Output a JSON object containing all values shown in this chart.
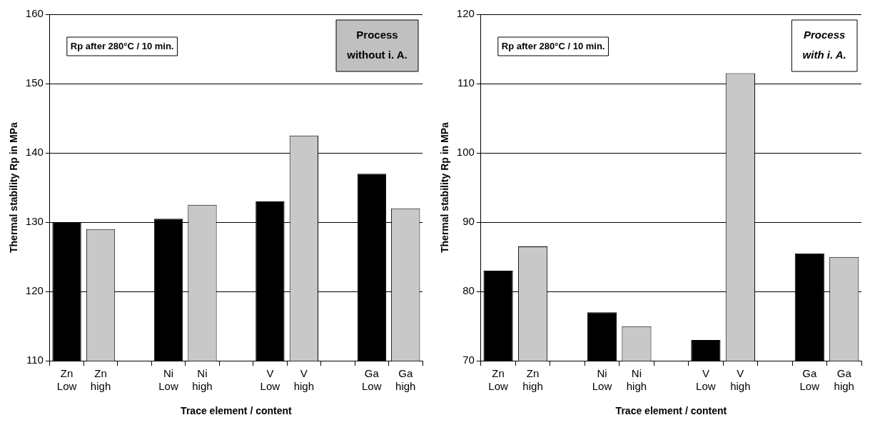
{
  "chart_data": [
    {
      "type": "bar",
      "xlabel": "Trace element / content",
      "ylabel": "Thermal stability Rp in MPa",
      "categories": [
        "Zn Low",
        "Zn high",
        null,
        "Ni Low",
        "Ni high",
        null,
        "V Low",
        "V high",
        null,
        "Ga Low",
        "Ga high"
      ],
      "values": [
        130,
        129,
        null,
        130.5,
        132.5,
        null,
        133,
        142.5,
        null,
        137,
        132
      ],
      "colors": [
        "#000000",
        "#c8c8c8",
        null,
        "#000000",
        "#c8c8c8",
        null,
        "#000000",
        "#c8c8c8",
        null,
        "#000000",
        "#c8c8c8"
      ],
      "ylim": [
        110,
        160
      ],
      "yticks": [
        110,
        120,
        130,
        140,
        150,
        160
      ],
      "grid": "y",
      "legend": false,
      "annotations": [
        "Rp after 280°C / 10 min.",
        "Process without i. A."
      ]
    },
    {
      "type": "bar",
      "xlabel": "Trace element / content",
      "ylabel": "Thermal stability Rp in MPa",
      "categories": [
        "Zn Low",
        "Zn high",
        null,
        "Ni Low",
        "Ni high",
        null,
        "V Low",
        "V high",
        null,
        "Ga Low",
        "Ga high"
      ],
      "values": [
        83,
        86.5,
        null,
        77,
        75,
        null,
        73,
        111.5,
        null,
        85.5,
        85
      ],
      "colors": [
        "#000000",
        "#c8c8c8",
        null,
        "#000000",
        "#c8c8c8",
        null,
        "#000000",
        "#c8c8c8",
        null,
        "#000000",
        "#c8c8c8"
      ],
      "ylim": [
        70,
        120
      ],
      "yticks": [
        70,
        80,
        90,
        100,
        110,
        120
      ],
      "grid": "y",
      "legend": false,
      "annotations": [
        "Rp after 280°C / 10 min.",
        "Process with i. A."
      ]
    }
  ]
}
